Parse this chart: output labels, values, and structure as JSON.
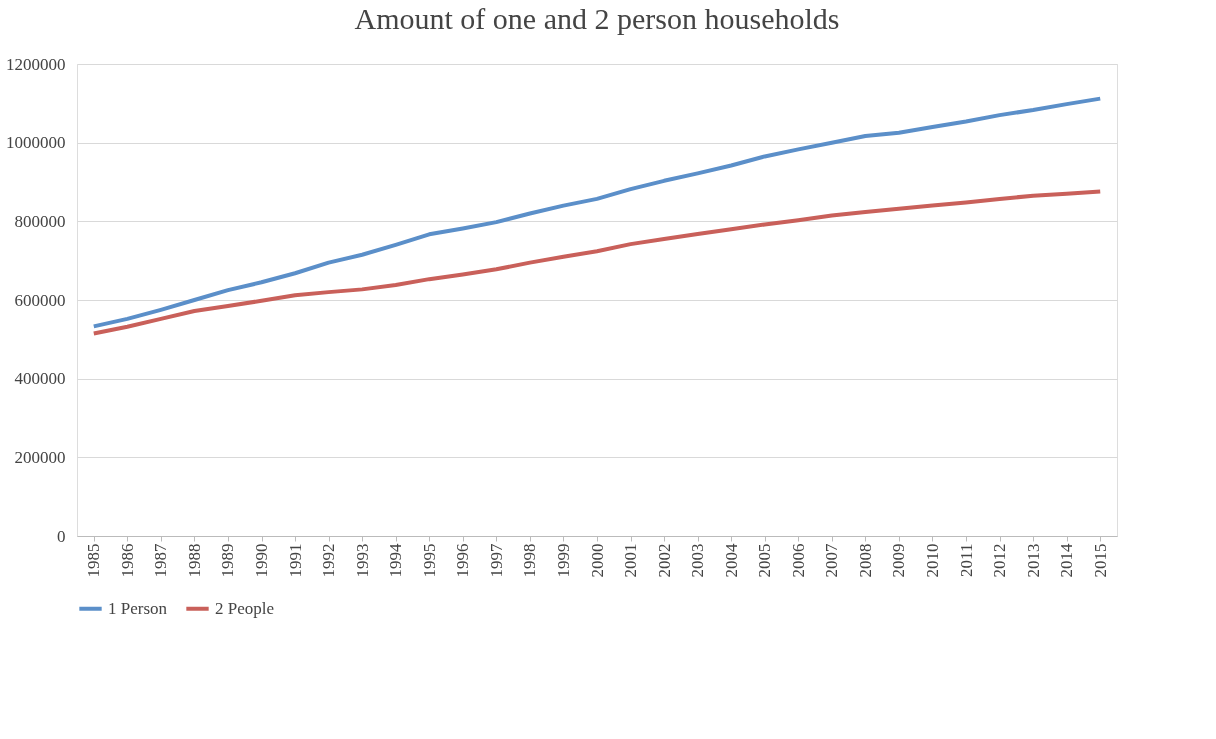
{
  "chart_data": {
    "type": "line",
    "title": "Amount of one and 2 person households",
    "categories": [
      "1985",
      "1986",
      "1987",
      "1988",
      "1989",
      "1990",
      "1991",
      "1992",
      "1993",
      "1994",
      "1995",
      "1996",
      "1997",
      "1998",
      "1999",
      "2000",
      "2001",
      "2002",
      "2003",
      "2004",
      "2005",
      "2006",
      "2007",
      "2008",
      "2009",
      "2010",
      "2011",
      "2012",
      "2013",
      "2014",
      "2015"
    ],
    "series": [
      {
        "name": "1 Person",
        "color": "#5b8fc9",
        "values": [
          533000,
          552000,
          575000,
          600000,
          625000,
          645000,
          668000,
          695000,
          715000,
          740000,
          767000,
          782000,
          798000,
          820000,
          840000,
          857000,
          882000,
          903000,
          922000,
          942000,
          965000,
          983000,
          1000000,
          1017000,
          1025000,
          1040000,
          1054000,
          1070000,
          1083000,
          1098000,
          1112000
        ]
      },
      {
        "name": "2 People",
        "color": "#c9605a",
        "values": [
          515000,
          532000,
          552000,
          572000,
          585000,
          598000,
          612000,
          620000,
          627000,
          638000,
          653000,
          665000,
          678000,
          695000,
          710000,
          724000,
          742000,
          755000,
          768000,
          780000,
          792000,
          803000,
          815000,
          824000,
          832000,
          840000,
          848000,
          857000,
          865000,
          870000,
          876000
        ]
      }
    ],
    "ylim": [
      0,
      1200000
    ],
    "yticks": [
      0,
      200000,
      400000,
      600000,
      800000,
      1000000,
      1200000
    ],
    "grid": "y",
    "legend": "bottom",
    "marker": "none",
    "line_style": "solid"
  }
}
